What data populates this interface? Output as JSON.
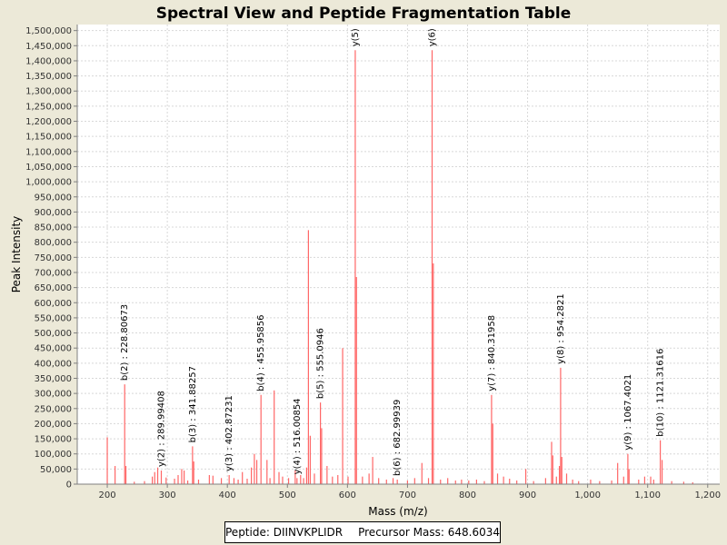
{
  "chart_data": {
    "type": "bar",
    "title": "Spectral View and Peptide Fragmentation Table",
    "xlabel": "Mass (m/z)",
    "ylabel": "Peak Intensity",
    "xlim": [
      150,
      1220
    ],
    "ylim": [
      0,
      1520000
    ],
    "x_ticks": [
      200,
      300,
      400,
      500,
      600,
      700,
      800,
      900,
      1000,
      1100,
      1200
    ],
    "x_tick_labels": [
      "200",
      "300",
      "400",
      "500",
      "600",
      "700",
      "800",
      "900",
      "1,000",
      "1,100",
      "1,200"
    ],
    "y_ticks": [
      0,
      50000,
      100000,
      150000,
      200000,
      250000,
      300000,
      350000,
      400000,
      450000,
      500000,
      550000,
      600000,
      650000,
      700000,
      750000,
      800000,
      850000,
      900000,
      950000,
      1000000,
      1050000,
      1100000,
      1150000,
      1200000,
      1250000,
      1300000,
      1350000,
      1400000,
      1450000,
      1500000
    ],
    "y_tick_labels": [
      "0",
      "50,000",
      "100,000",
      "150,000",
      "200,000",
      "250,000",
      "300,000",
      "350,000",
      "400,000",
      "450,000",
      "500,000",
      "550,000",
      "600,000",
      "650,000",
      "700,000",
      "750,000",
      "800,000",
      "850,000",
      "900,000",
      "950,000",
      "1,000,000",
      "1,050,000",
      "1,100,000",
      "1,150,000",
      "1,200,000",
      "1,250,000",
      "1,300,000",
      "1,350,000",
      "1,400,000",
      "1,450,000",
      "1,500,000"
    ],
    "grid": true,
    "peak_color": "#ff6666",
    "peaks": [
      [
        200,
        155000
      ],
      [
        213,
        60000
      ],
      [
        229,
        330000
      ],
      [
        231,
        60000
      ],
      [
        245,
        8000
      ],
      [
        262,
        10000
      ],
      [
        275,
        25000
      ],
      [
        279,
        40000
      ],
      [
        284,
        55000
      ],
      [
        290,
        45000
      ],
      [
        298,
        22000
      ],
      [
        312,
        18000
      ],
      [
        318,
        30000
      ],
      [
        324,
        50000
      ],
      [
        328,
        45000
      ],
      [
        334,
        12000
      ],
      [
        342,
        125000
      ],
      [
        344,
        75000
      ],
      [
        352,
        15000
      ],
      [
        370,
        30000
      ],
      [
        376,
        28000
      ],
      [
        390,
        20000
      ],
      [
        403,
        30000
      ],
      [
        411,
        20000
      ],
      [
        418,
        15000
      ],
      [
        425,
        40000
      ],
      [
        433,
        18000
      ],
      [
        440,
        55000
      ],
      [
        445,
        100000
      ],
      [
        449,
        80000
      ],
      [
        456,
        295000
      ],
      [
        466,
        80000
      ],
      [
        471,
        20000
      ],
      [
        478,
        310000
      ],
      [
        486,
        40000
      ],
      [
        492,
        25000
      ],
      [
        502,
        20000
      ],
      [
        513,
        45000
      ],
      [
        516,
        20000
      ],
      [
        522,
        30000
      ],
      [
        527,
        20000
      ],
      [
        532,
        55000
      ],
      [
        535,
        840000
      ],
      [
        538,
        160000
      ],
      [
        545,
        35000
      ],
      [
        555,
        270000
      ],
      [
        557,
        185000
      ],
      [
        566,
        60000
      ],
      [
        575,
        25000
      ],
      [
        584,
        30000
      ],
      [
        592,
        450000
      ],
      [
        601,
        25000
      ],
      [
        613,
        1435000
      ],
      [
        615,
        685000
      ],
      [
        625,
        25000
      ],
      [
        636,
        35000
      ],
      [
        642,
        90000
      ],
      [
        652,
        20000
      ],
      [
        665,
        15000
      ],
      [
        676,
        20000
      ],
      [
        683,
        15000
      ],
      [
        700,
        12000
      ],
      [
        712,
        20000
      ],
      [
        724,
        70000
      ],
      [
        735,
        20000
      ],
      [
        741,
        1435000
      ],
      [
        743,
        730000
      ],
      [
        755,
        15000
      ],
      [
        767,
        20000
      ],
      [
        780,
        12000
      ],
      [
        790,
        15000
      ],
      [
        802,
        12000
      ],
      [
        815,
        15000
      ],
      [
        828,
        10000
      ],
      [
        840,
        295000
      ],
      [
        842,
        200000
      ],
      [
        850,
        35000
      ],
      [
        860,
        25000
      ],
      [
        870,
        18000
      ],
      [
        882,
        12000
      ],
      [
        897,
        50000
      ],
      [
        910,
        10000
      ],
      [
        930,
        20000
      ],
      [
        940,
        140000
      ],
      [
        942,
        95000
      ],
      [
        948,
        25000
      ],
      [
        953,
        60000
      ],
      [
        955,
        385000
      ],
      [
        957,
        90000
      ],
      [
        965,
        35000
      ],
      [
        975,
        15000
      ],
      [
        985,
        10000
      ],
      [
        1005,
        15000
      ],
      [
        1020,
        10000
      ],
      [
        1040,
        12000
      ],
      [
        1050,
        70000
      ],
      [
        1060,
        25000
      ],
      [
        1067,
        100000
      ],
      [
        1069,
        50000
      ],
      [
        1085,
        15000
      ],
      [
        1095,
        25000
      ],
      [
        1105,
        25000
      ],
      [
        1110,
        15000
      ],
      [
        1121,
        145000
      ],
      [
        1124,
        80000
      ],
      [
        1140,
        10000
      ],
      [
        1160,
        8000
      ],
      [
        1175,
        6000
      ]
    ],
    "annotations": [
      {
        "label": "b(2) : 228.80673",
        "x": 229,
        "y": 330000
      },
      {
        "label": "y(2) : 289.99408",
        "x": 290,
        "y": 45000
      },
      {
        "label": "b(3) : 341.88257",
        "x": 342,
        "y": 125000
      },
      {
        "label": "y(3) : 402.87231",
        "x": 403,
        "y": 30000
      },
      {
        "label": "b(4) : 455.95856",
        "x": 456,
        "y": 295000
      },
      {
        "label": "y(4) : 516.00854",
        "x": 516,
        "y": 20000
      },
      {
        "label": "b(5) : 555.0946",
        "x": 555,
        "y": 270000
      },
      {
        "label": "y(5)",
        "x": 613,
        "y": 1435000
      },
      {
        "label": "b(6) : 682.99939",
        "x": 683,
        "y": 15000
      },
      {
        "label": "y(6)",
        "x": 741,
        "y": 1435000
      },
      {
        "label": "y(7) : 840.31958",
        "x": 840,
        "y": 295000
      },
      {
        "label": "y(8) : 954.2821",
        "x": 955,
        "y": 385000
      },
      {
        "label": "y(9) : 1067.4021",
        "x": 1067,
        "y": 100000
      },
      {
        "label": "b(10) : 1121.31616",
        "x": 1121,
        "y": 145000
      }
    ]
  },
  "legend": {
    "peptide_label": "Peptide: DIINVKPLIDR",
    "precursor_label": "Precursor Mass: 648.6034"
  }
}
